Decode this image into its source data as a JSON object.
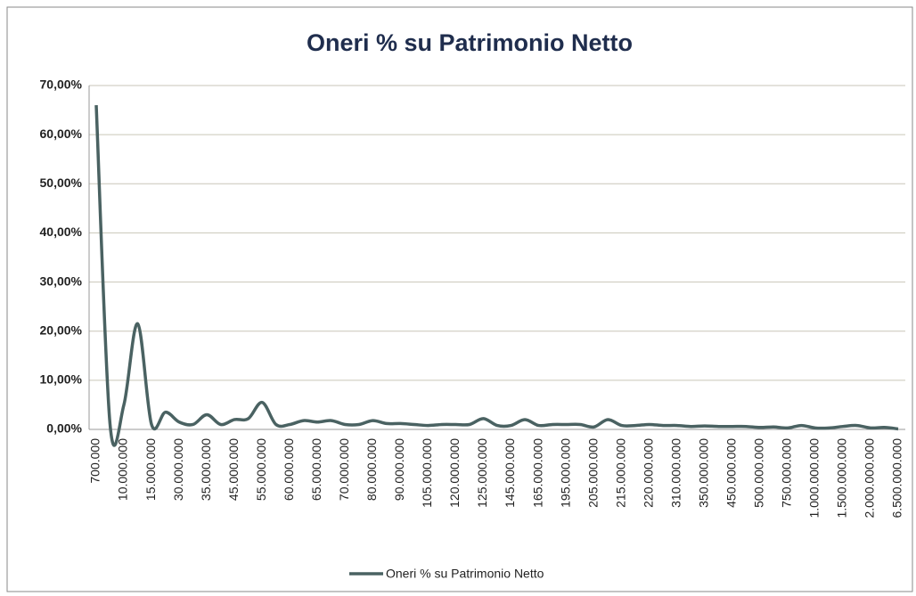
{
  "chart_data": {
    "type": "line",
    "title": "Oneri % su Patrimonio Netto",
    "categories": [
      "700.000",
      null,
      "10.000.000",
      null,
      "15.000.000",
      null,
      "30.000.000",
      null,
      "35.000.000",
      null,
      "45.000.000",
      null,
      "55.000.000",
      null,
      "60.000.000",
      null,
      "65.000.000",
      null,
      "70.000.000",
      null,
      "80.000.000",
      null,
      "90.000.000",
      null,
      "105.000.000",
      null,
      "120.000.000",
      null,
      "125.000.000",
      null,
      "145.000.000",
      null,
      "165.000.000",
      null,
      "195.000.000",
      null,
      "205.000.000",
      null,
      "215.000.000",
      null,
      "220.000.000",
      null,
      "310.000.000",
      null,
      "350.000.000",
      null,
      "450.000.000",
      null,
      "500.000.000",
      null,
      "750.000.000",
      null,
      "1.000.000.000",
      null,
      "1.500.000.000",
      null,
      "2.000.000.000",
      null,
      "6.500.000.000"
    ],
    "series": [
      {
        "name": "Oneri % su Patrimonio Netto",
        "color": "#4a6262",
        "values": [
          66,
          1,
          5,
          21.5,
          1,
          3.5,
          1.5,
          1,
          3,
          1,
          2,
          2.2,
          5.5,
          1,
          1,
          1.8,
          1.5,
          1.8,
          1,
          1,
          1.8,
          1.2,
          1.2,
          1,
          0.8,
          1,
          1,
          1,
          2.2,
          0.8,
          0.8,
          2,
          0.8,
          1,
          1,
          1,
          0.5,
          2,
          0.8,
          0.8,
          1,
          0.8,
          0.8,
          0.6,
          0.7,
          0.6,
          0.6,
          0.6,
          0.4,
          0.5,
          0.3,
          0.8,
          0.3,
          0.3,
          0.6,
          0.8,
          0.3,
          0.4,
          0.1
        ]
      }
    ],
    "ylim": [
      0,
      70
    ],
    "yticks": [
      {
        "value": 0,
        "label": "0,00%"
      },
      {
        "value": 10,
        "label": "10,00%"
      },
      {
        "value": 20,
        "label": "20,00%"
      },
      {
        "value": 30,
        "label": "30,00%"
      },
      {
        "value": 40,
        "label": "40,00%"
      },
      {
        "value": 50,
        "label": "50,00%"
      },
      {
        "value": 60,
        "label": "60,00%"
      },
      {
        "value": 70,
        "label": "70,00%"
      }
    ],
    "grid": true,
    "legend": "bottom"
  }
}
